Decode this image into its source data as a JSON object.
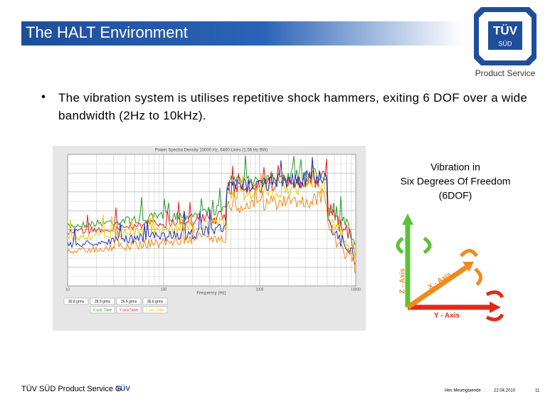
{
  "header": {
    "title": "The HALT Environment",
    "logo": {
      "brand": "TÜV",
      "sub": "SÜD",
      "caption": "Product Service"
    }
  },
  "body": {
    "bullet": "The vibration system is utilises repetitive shock hammers, exiting 6 DOF over a wide bandwidth (2Hz to 10kHz)."
  },
  "figure": {
    "title": "Power Spectra Density  10000 Hz, 6400 Lines (1.56 Hz BW)",
    "x_label": "Frequency (Hz)",
    "x_ticks": [
      "10",
      "100",
      "1000",
      "10000"
    ],
    "rms": [
      "30.8 grms",
      "28.9 grms",
      "25.5 grms",
      "35.6 grms"
    ],
    "legend": [
      "X axis Table",
      "Y axis Table",
      "Z axis Table"
    ]
  },
  "diagram": {
    "caption": [
      "Vibration in",
      "Six Degrees Of Freedom",
      "(6DOF)"
    ],
    "axes": [
      "Z - Axis",
      "X - Axis",
      "Y - Axis"
    ]
  },
  "footer": {
    "left": "TÜV SÜD Product Service G",
    "logo": "TÜV",
    "dept": "Hes Meumgtaende",
    "date": "22.04.2010",
    "page": "11"
  }
}
